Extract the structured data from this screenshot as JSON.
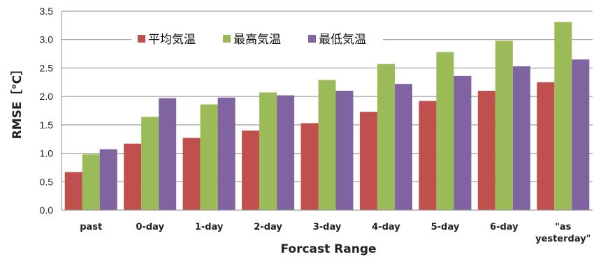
{
  "chart_data": {
    "type": "bar",
    "xlabel": "Forcast Range",
    "ylabel": "RMSE［℃］",
    "ylim": [
      0,
      3.5
    ],
    "yticks": [
      "0.0",
      "0.5",
      "1.0",
      "1.5",
      "2.0",
      "2.5",
      "3.0",
      "3.5"
    ],
    "grid": "horizontal",
    "legend_position": "top-left-inside",
    "categories": [
      [
        "past"
      ],
      [
        "0-day"
      ],
      [
        "1-day"
      ],
      [
        "2-day"
      ],
      [
        "3-day"
      ],
      [
        "4-day"
      ],
      [
        "5-day"
      ],
      [
        "6-day"
      ],
      [
        "\"as",
        "yesterday\""
      ]
    ],
    "series": [
      {
        "name": "平均気温",
        "color": "#c0504d",
        "values": [
          0.67,
          1.17,
          1.27,
          1.4,
          1.53,
          1.73,
          1.92,
          2.1,
          2.25
        ]
      },
      {
        "name": "最高気温",
        "color": "#9bbb59",
        "values": [
          0.98,
          1.64,
          1.86,
          2.07,
          2.29,
          2.57,
          2.78,
          2.98,
          3.31
        ]
      },
      {
        "name": "最低気温",
        "color": "#8064a2",
        "values": [
          1.07,
          1.97,
          1.98,
          2.02,
          2.1,
          2.22,
          2.36,
          2.53,
          2.65
        ]
      }
    ]
  }
}
